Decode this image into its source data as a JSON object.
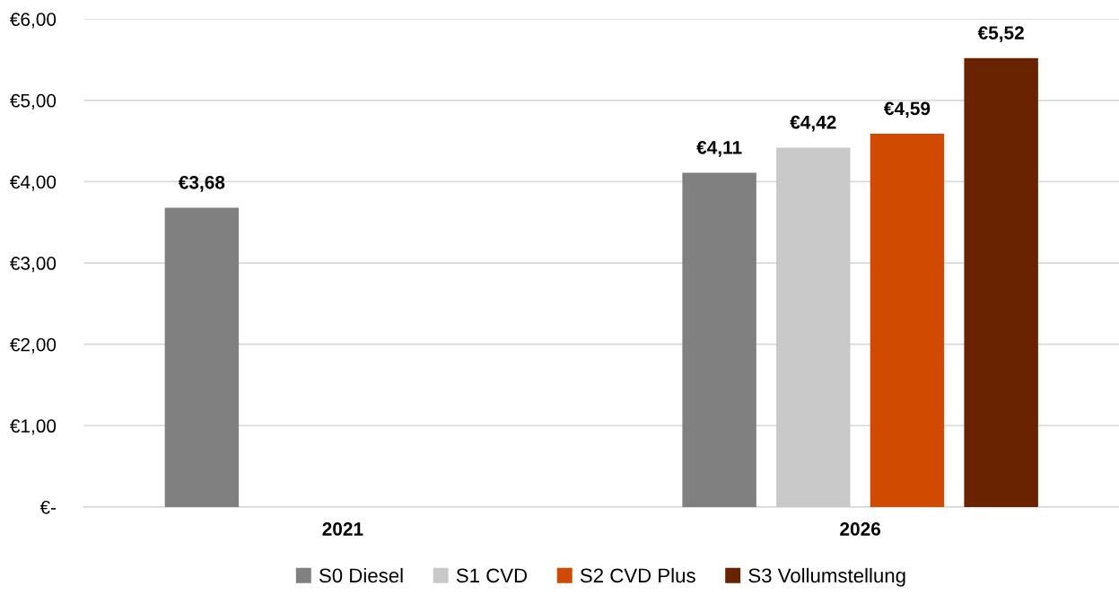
{
  "chart_data": {
    "type": "bar",
    "categories": [
      "2021",
      "2026"
    ],
    "series": [
      {
        "name": "S0 Diesel",
        "color": "#808080",
        "values": [
          3.68,
          4.11
        ],
        "value_labels": [
          "€3,68",
          "€4,11"
        ]
      },
      {
        "name": "S1 CVD",
        "color": "#c9c9c9",
        "values": [
          null,
          4.42
        ],
        "value_labels": [
          null,
          "€4,42"
        ]
      },
      {
        "name": "S2 CVD Plus",
        "color": "#d04a02",
        "values": [
          null,
          4.59
        ],
        "value_labels": [
          null,
          "€4,59"
        ]
      },
      {
        "name": "S3 Vollumstellung",
        "color": "#692300",
        "values": [
          null,
          5.52
        ],
        "value_labels": [
          null,
          "€5,52"
        ]
      }
    ],
    "ylim": [
      0,
      6
    ],
    "yticks": [
      {
        "value": 0,
        "label": "€-"
      },
      {
        "value": 1,
        "label": "€1,00"
      },
      {
        "value": 2,
        "label": "€2,00"
      },
      {
        "value": 3,
        "label": "€3,00"
      },
      {
        "value": 4,
        "label": "€4,00"
      },
      {
        "value": 5,
        "label": "€5,00"
      },
      {
        "value": 6,
        "label": "€6,00"
      }
    ],
    "grid": "y",
    "legend": "bottom"
  }
}
